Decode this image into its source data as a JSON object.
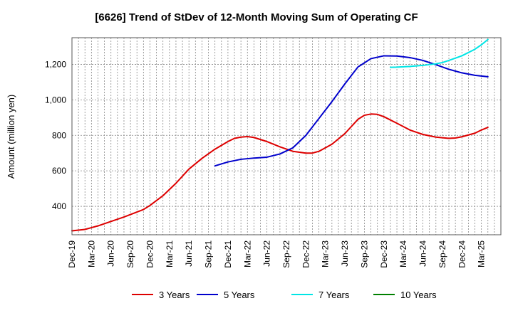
{
  "chart_data": {
    "type": "line",
    "title": "[6626]  Trend of StDev of 12-Month Moving Sum of Operating CF",
    "xlabel": "",
    "ylabel": "Amount (million yen)",
    "ylim": [
      240,
      1350
    ],
    "yticks": [
      400,
      600,
      800,
      "1,000",
      "1,200"
    ],
    "ytick_values": [
      400,
      600,
      800,
      1000,
      1200
    ],
    "xlim_months": [
      0,
      66
    ],
    "xticks": [
      "Dec-19",
      "Mar-20",
      "Jun-20",
      "Sep-20",
      "Dec-20",
      "Mar-21",
      "Jun-21",
      "Sep-21",
      "Dec-21",
      "Mar-22",
      "Jun-22",
      "Sep-22",
      "Dec-22",
      "Mar-23",
      "Jun-23",
      "Sep-23",
      "Dec-23",
      "Mar-24",
      "Jun-24",
      "Sep-24",
      "Dec-24",
      "Mar-25"
    ],
    "grid": true,
    "legend_position": "bottom",
    "series": [
      {
        "name": "3 Years",
        "color": "#dd0000",
        "points": [
          [
            0,
            262
          ],
          [
            2,
            270
          ],
          [
            4,
            290
          ],
          [
            6,
            315
          ],
          [
            8,
            340
          ],
          [
            10,
            368
          ],
          [
            11,
            382
          ],
          [
            12,
            405
          ],
          [
            14,
            460
          ],
          [
            16,
            530
          ],
          [
            18,
            610
          ],
          [
            20,
            670
          ],
          [
            22,
            722
          ],
          [
            24,
            765
          ],
          [
            25,
            783
          ],
          [
            26,
            790
          ],
          [
            27,
            793
          ],
          [
            28,
            788
          ],
          [
            30,
            765
          ],
          [
            32,
            735
          ],
          [
            34,
            710
          ],
          [
            36,
            700
          ],
          [
            37,
            700
          ],
          [
            38,
            710
          ],
          [
            40,
            750
          ],
          [
            42,
            810
          ],
          [
            44,
            890
          ],
          [
            45,
            913
          ],
          [
            46,
            920
          ],
          [
            47,
            918
          ],
          [
            48,
            905
          ],
          [
            50,
            868
          ],
          [
            52,
            830
          ],
          [
            54,
            805
          ],
          [
            56,
            790
          ],
          [
            58,
            783
          ],
          [
            59,
            785
          ],
          [
            60,
            792
          ],
          [
            62,
            812
          ],
          [
            63,
            830
          ],
          [
            64,
            845
          ]
        ]
      },
      {
        "name": "5 Years",
        "color": "#0000cc",
        "points": [
          [
            22,
            628
          ],
          [
            24,
            650
          ],
          [
            26,
            665
          ],
          [
            28,
            672
          ],
          [
            30,
            677
          ],
          [
            32,
            695
          ],
          [
            34,
            730
          ],
          [
            36,
            800
          ],
          [
            38,
            895
          ],
          [
            40,
            990
          ],
          [
            42,
            1090
          ],
          [
            44,
            1185
          ],
          [
            46,
            1232
          ],
          [
            48,
            1248
          ],
          [
            50,
            1247
          ],
          [
            52,
            1238
          ],
          [
            54,
            1222
          ],
          [
            56,
            1198
          ],
          [
            58,
            1172
          ],
          [
            60,
            1152
          ],
          [
            62,
            1138
          ],
          [
            64,
            1130
          ]
        ]
      },
      {
        "name": "7 Years",
        "color": "#00e5e5",
        "points": [
          [
            49,
            1183
          ],
          [
            50,
            1184
          ],
          [
            52,
            1188
          ],
          [
            54,
            1194
          ],
          [
            56,
            1203
          ],
          [
            57,
            1210
          ],
          [
            58,
            1222
          ],
          [
            60,
            1248
          ],
          [
            62,
            1285
          ],
          [
            63,
            1310
          ],
          [
            64,
            1340
          ]
        ]
      },
      {
        "name": "10 Years",
        "color": "#008000",
        "points": []
      }
    ]
  }
}
